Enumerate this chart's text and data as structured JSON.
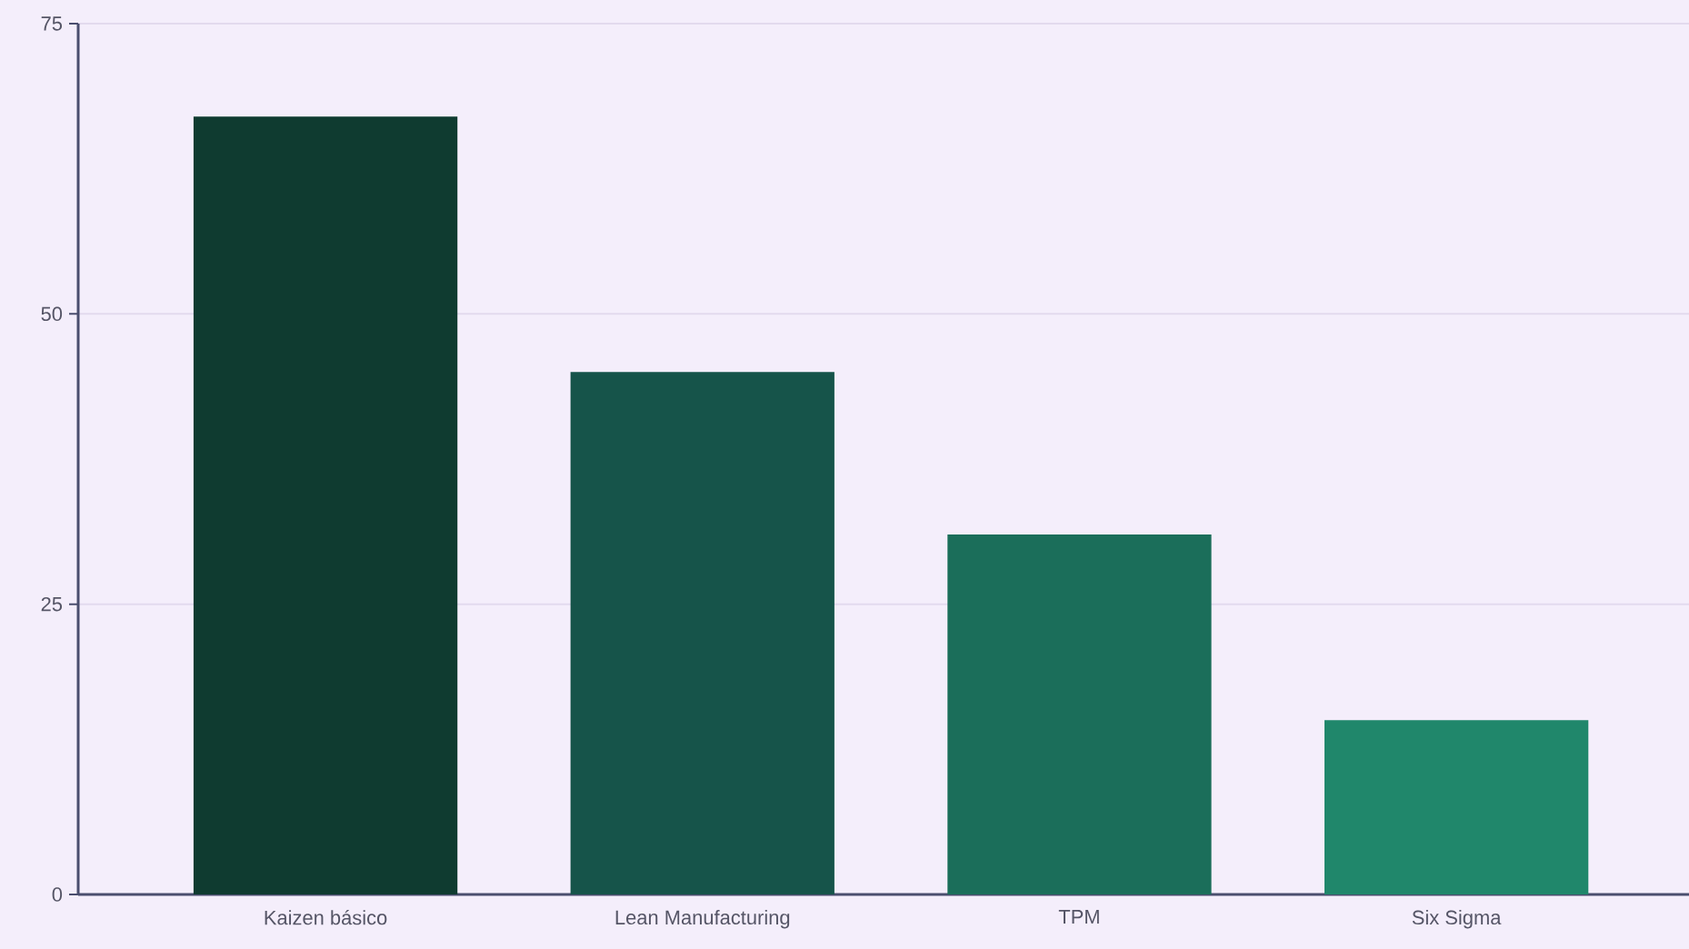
{
  "chart_data": {
    "type": "bar",
    "categories": [
      "Kaizen básico",
      "Lean Manufacturing",
      "TPM",
      "Six Sigma"
    ],
    "values": [
      67,
      45,
      31,
      15
    ],
    "colors": [
      "#0f3b30",
      "#16544a",
      "#1b6e5a",
      "#20876b"
    ],
    "ylim": [
      0,
      75
    ],
    "yticks": [
      0,
      25,
      50,
      75
    ],
    "grid": "y"
  }
}
